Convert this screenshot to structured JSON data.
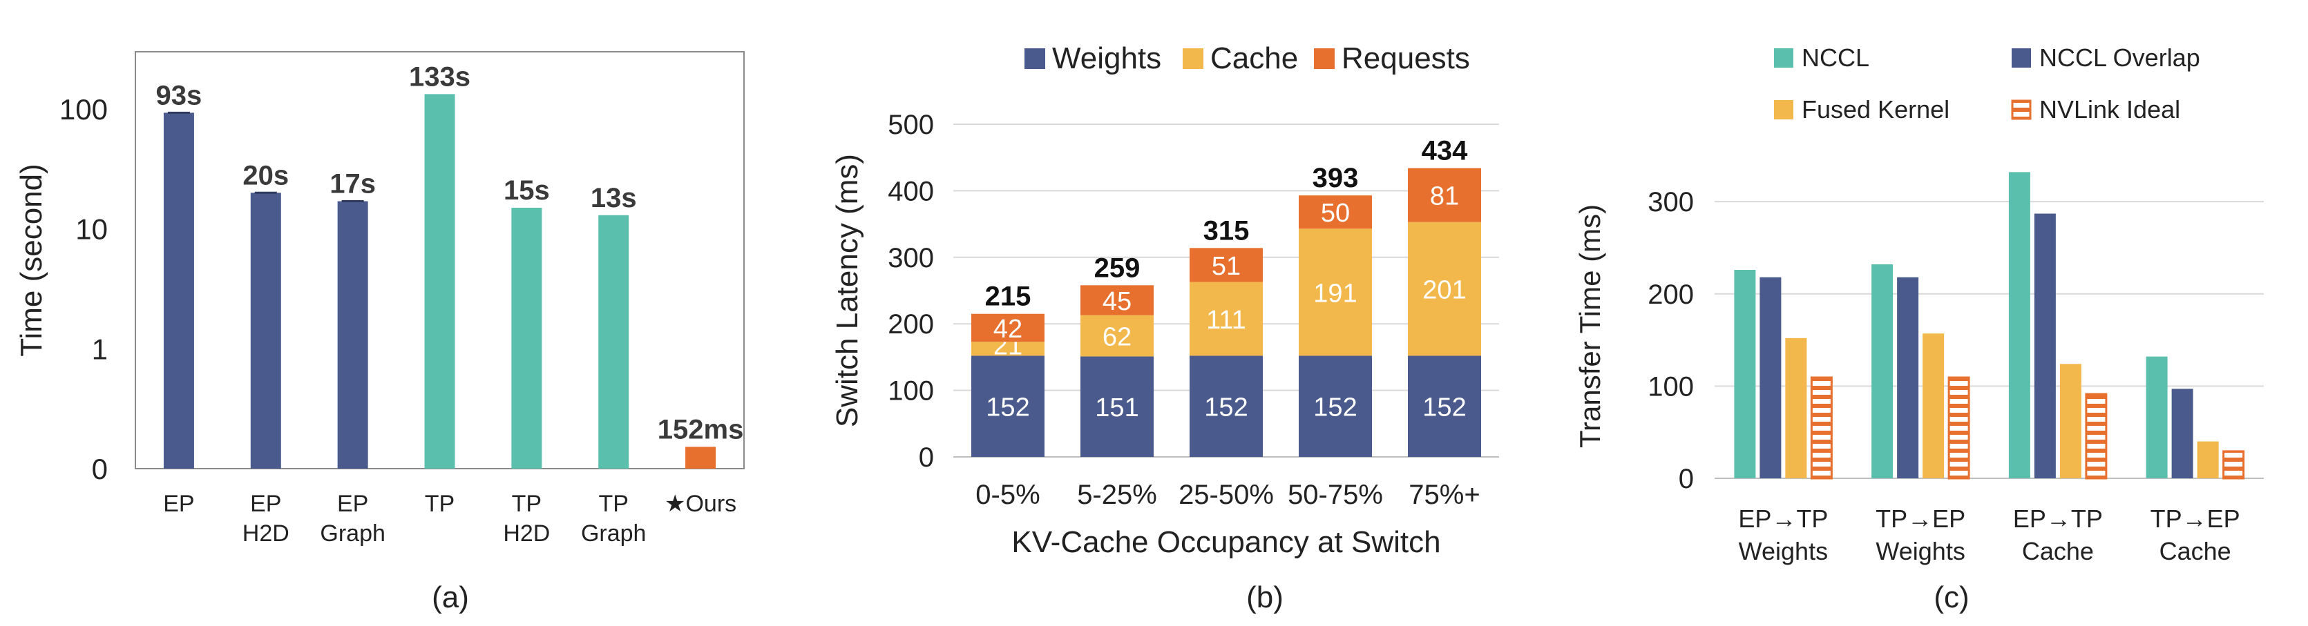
{
  "colors": {
    "ep": "#4a5a8c",
    "tp": "#5bbfae",
    "ours": "#e8702f",
    "weights": "#4a5a8c",
    "cache": "#f2b84b",
    "requests": "#e8702f",
    "nccl": "#5bbfae",
    "nccl_overlap": "#4a5a8c",
    "fused_kernel": "#f2b84b",
    "nvlink_ideal": "#e8702f"
  },
  "panels": [
    {
      "label": "(a)"
    },
    {
      "label": "(b)"
    },
    {
      "label": "(c)"
    }
  ],
  "chart_data": [
    {
      "type": "bar",
      "title": "",
      "xlabel": "",
      "ylabel": "Time (second)",
      "scale": "log",
      "ylim": [
        0.1,
        300
      ],
      "yticks": [
        {
          "value": 0.1,
          "label": "0"
        },
        {
          "value": 1,
          "label": "1"
        },
        {
          "value": 10,
          "label": "10"
        },
        {
          "value": 100,
          "label": "100"
        }
      ],
      "categories": [
        {
          "line1": "EP",
          "line2": ""
        },
        {
          "line1": "EP",
          "line2": "H2D"
        },
        {
          "line1": "EP",
          "line2": "Graph"
        },
        {
          "line1": "TP",
          "line2": ""
        },
        {
          "line1": "TP",
          "line2": "H2D"
        },
        {
          "line1": "TP",
          "line2": "Graph"
        },
        {
          "line1": "★Ours",
          "line2": ""
        }
      ],
      "values": [
        93,
        20,
        17,
        133,
        15,
        13,
        0.152
      ],
      "bar_groups": [
        "ep",
        "ep",
        "ep",
        "tp",
        "tp",
        "tp",
        "ours"
      ],
      "data_labels": [
        "93s",
        "20s",
        "17s",
        "133s",
        "15s",
        "13s",
        "152ms"
      ],
      "grid": false,
      "legend": "none"
    },
    {
      "type": "bar",
      "stacked": true,
      "title": "",
      "xlabel": "KV-Cache Occupancy at Switch",
      "ylabel": "Switch Latency (ms)",
      "ylim": [
        0,
        500
      ],
      "yticks": [
        0,
        100,
        200,
        300,
        400,
        500
      ],
      "categories": [
        "0-5%",
        "5-25%",
        "25-50%",
        "50-75%",
        "75%+"
      ],
      "series": [
        {
          "name": "Weights",
          "color_key": "weights",
          "values": [
            152,
            151,
            152,
            152,
            152
          ]
        },
        {
          "name": "Cache",
          "color_key": "cache",
          "values": [
            21,
            62,
            111,
            191,
            201
          ]
        },
        {
          "name": "Requests",
          "color_key": "requests",
          "values": [
            42,
            45,
            51,
            50,
            81
          ]
        }
      ],
      "totals": [
        215,
        259,
        315,
        393,
        434
      ],
      "grid": true,
      "legend": "top"
    },
    {
      "type": "bar",
      "title": "",
      "xlabel": "",
      "ylabel": "Transfer Time (ms)",
      "ylim": [
        0,
        345
      ],
      "yticks": [
        0,
        100,
        200,
        300
      ],
      "categories": [
        {
          "line1": "EP→TP",
          "line2": "Weights"
        },
        {
          "line1": "TP→EP",
          "line2": "Weights"
        },
        {
          "line1": "EP→TP",
          "line2": "Cache"
        },
        {
          "line1": "TP→EP",
          "line2": "Cache"
        }
      ],
      "series": [
        {
          "name": "NCCL",
          "color_key": "nccl",
          "pattern": "solid",
          "values": [
            226,
            232,
            332,
            132
          ]
        },
        {
          "name": "NCCL Overlap",
          "color_key": "nccl_overlap",
          "pattern": "solid",
          "values": [
            218,
            218,
            287,
            97
          ]
        },
        {
          "name": "Fused Kernel",
          "color_key": "fused_kernel",
          "pattern": "solid",
          "values": [
            152,
            157,
            124,
            40
          ]
        },
        {
          "name": "NVLink Ideal",
          "color_key": "nvlink_ideal",
          "pattern": "hatched",
          "values": [
            110,
            110,
            92,
            30
          ]
        }
      ],
      "grid": true,
      "legend": "top"
    }
  ]
}
